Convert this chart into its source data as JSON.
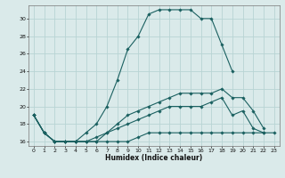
{
  "xlabel": "Humidex (Indice chaleur)",
  "ylabel": "",
  "bg_color": "#daeaea",
  "grid_color": "#b8d4d4",
  "line_color": "#1a6060",
  "xlim": [
    -0.5,
    23.5
  ],
  "ylim": [
    15.5,
    31.5
  ],
  "yticks": [
    16,
    18,
    20,
    22,
    24,
    26,
    28,
    30
  ],
  "xticks": [
    0,
    1,
    2,
    3,
    4,
    5,
    6,
    7,
    8,
    9,
    10,
    11,
    12,
    13,
    14,
    15,
    16,
    17,
    18,
    19,
    20,
    21,
    22,
    23
  ],
  "series": [
    [
      19,
      17,
      16,
      16,
      16,
      17,
      18,
      20,
      23,
      26.5,
      28,
      30.5,
      31,
      31,
      31,
      31,
      30,
      30,
      27,
      24,
      null,
      null,
      null,
      null
    ],
    [
      19,
      17,
      16,
      16,
      16,
      16,
      16,
      17,
      18,
      19,
      19.5,
      20,
      20.5,
      21,
      21.5,
      21.5,
      21.5,
      21.5,
      22,
      21,
      21,
      19.5,
      17.5,
      null
    ],
    [
      19,
      17,
      16,
      16,
      16,
      16,
      16.5,
      17,
      17.5,
      18,
      18.5,
      19,
      19.5,
      20,
      20,
      20,
      20,
      20.5,
      21,
      19,
      19.5,
      17.5,
      17,
      null
    ],
    [
      19,
      17,
      16,
      16,
      16,
      16,
      16,
      16,
      16,
      16,
      16.5,
      17,
      17,
      17,
      17,
      17,
      17,
      17,
      17,
      17,
      17,
      17,
      17,
      17
    ]
  ]
}
